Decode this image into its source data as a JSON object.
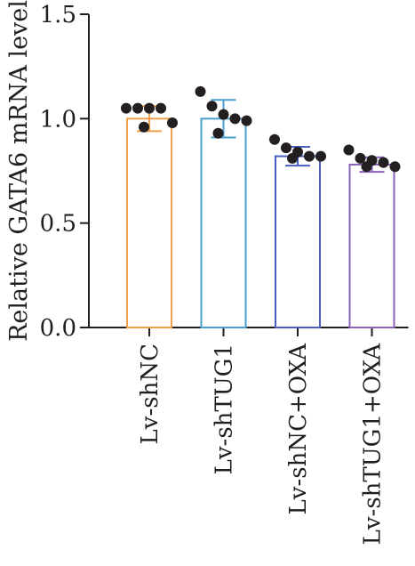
{
  "chart_data": {
    "type": "bar",
    "title": "",
    "xlabel": "",
    "ylabel": "Relative GATA6 mRNA level",
    "ylim": [
      0,
      1.5
    ],
    "yticks": [
      "0.0",
      "0.5",
      "1.0",
      "1.5"
    ],
    "grid": false,
    "legend": "none",
    "categories": [
      "Lv-shNC",
      "Lv-shTUG1",
      "Lv-shNC+OXA",
      "Lv-shTUG1+OXA"
    ],
    "values": [
      1.0,
      1.0,
      0.82,
      0.78
    ],
    "errors": [
      0.06,
      0.09,
      0.045,
      0.035
    ],
    "colors": [
      "#f4a04a",
      "#4a9fd0",
      "#4a5fc0",
      "#8a62b8"
    ],
    "points": [
      [
        1.05,
        1.05,
        1.05,
        1.05,
        0.98,
        0.96
      ],
      [
        1.13,
        1.06,
        1.02,
        1.0,
        0.99,
        0.93
      ],
      [
        0.9,
        0.86,
        0.84,
        0.82,
        0.82,
        0.81
      ],
      [
        0.85,
        0.81,
        0.8,
        0.79,
        0.77,
        0.77
      ]
    ]
  }
}
